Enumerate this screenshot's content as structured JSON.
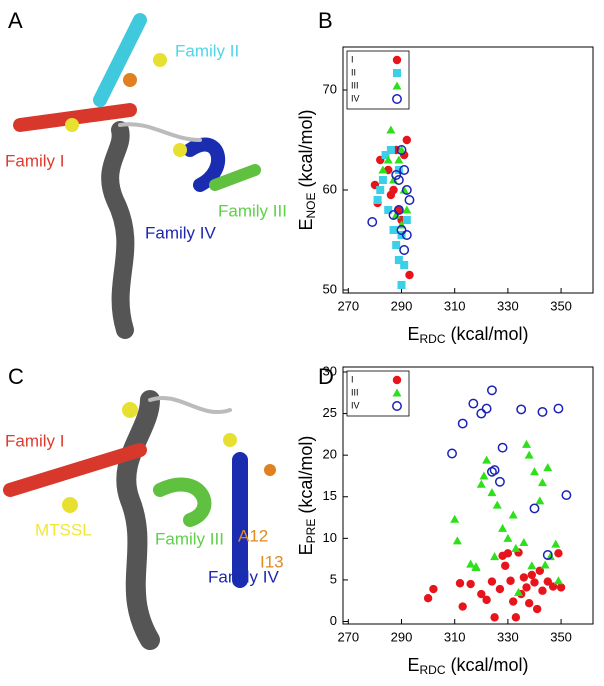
{
  "panel_labels": [
    "A",
    "B",
    "C",
    "D"
  ],
  "annotations": [
    {
      "text": "Family II",
      "color": "#4fd6e8"
    },
    {
      "text": "Family I",
      "color": "#e03a2e"
    },
    {
      "text": "Family III",
      "color": "#5fd048"
    },
    {
      "text": "Family IV",
      "color": "#1c28b0"
    },
    {
      "text": "Family I",
      "color": "#e03a2e"
    },
    {
      "text": "MTSSL",
      "color": "#f0e830"
    },
    {
      "text": "A12",
      "color": "#e08a20"
    },
    {
      "text": "I13",
      "color": "#e08a20"
    },
    {
      "text": "Family III",
      "color": "#5fd048"
    },
    {
      "text": "Family IV",
      "color": "#1c28b0"
    }
  ],
  "chart_data": [
    {
      "type": "scatter",
      "x_label": {
        "main": "E",
        "sub": "RDC",
        "unit": "(kcal/mol)"
      },
      "y_label": {
        "main": "E",
        "sub": "NOE",
        "unit": "(kcal/mol)"
      },
      "xlim": [
        268,
        362
      ],
      "xticks": [
        270,
        290,
        310,
        330,
        350
      ],
      "ylim": [
        49.7,
        74.3
      ],
      "yticks": [
        50,
        60,
        70
      ],
      "series": [
        {
          "name": "I",
          "color": "#e8141c",
          "marker": "circle",
          "x": [
            280,
            282,
            285,
            287,
            288,
            289,
            290,
            291,
            292,
            293,
            286,
            281
          ],
          "values": [
            60.5,
            63,
            62,
            60,
            64,
            58,
            57,
            63.5,
            65,
            51.5,
            59.5,
            58.7
          ]
        },
        {
          "name": "II",
          "color": "#3ad0e8",
          "marker": "square",
          "x": [
            281,
            283,
            284,
            286,
            287,
            288,
            289,
            290,
            291,
            292,
            285,
            282,
            289,
            290
          ],
          "values": [
            59,
            61,
            63.5,
            64,
            56,
            54.5,
            62,
            50.5,
            52.5,
            57,
            58,
            60,
            53,
            55.5
          ]
        },
        {
          "name": "III",
          "color": "#2ee01c",
          "marker": "triangle",
          "x": [
            283,
            286,
            287,
            288,
            289,
            290,
            291,
            292,
            285,
            290
          ],
          "values": [
            62,
            66,
            61,
            57.5,
            63,
            64,
            60,
            58,
            63,
            56.5
          ]
        },
        {
          "name": "IV",
          "color": "#1a22b8",
          "marker": "open-circle",
          "x": [
            279,
            287,
            288,
            289,
            290,
            291,
            292,
            293,
            290,
            291,
            292,
            289
          ],
          "values": [
            56.8,
            57.5,
            61.5,
            61,
            64,
            62,
            60,
            59,
            56,
            54,
            55.5,
            58
          ]
        }
      ]
    },
    {
      "type": "scatter",
      "x_label": {
        "main": "E",
        "sub": "RDC",
        "unit": "(kcal/mol)"
      },
      "y_label": {
        "main": "E",
        "sub": "PRE",
        "unit": "(kcal/mol)"
      },
      "xlim": [
        268,
        362
      ],
      "xticks": [
        270,
        290,
        310,
        330,
        350
      ],
      "ylim": [
        -0.3,
        30.6
      ],
      "yticks": [
        0,
        5,
        10,
        15,
        20,
        25,
        30
      ],
      "series": [
        {
          "name": "I",
          "color": "#e8141c",
          "marker": "circle",
          "x": [
            300,
            302,
            312,
            313,
            316,
            320,
            322,
            324,
            325,
            327,
            328,
            330,
            331,
            332,
            333,
            335,
            336,
            337,
            338,
            339,
            340,
            341,
            342,
            343,
            345,
            347,
            349,
            350,
            329,
            334
          ],
          "values": [
            2.8,
            3.9,
            4.6,
            1.8,
            4.5,
            3.3,
            2.6,
            4.8,
            0.5,
            3.9,
            7.9,
            8.2,
            4.9,
            2.4,
            0.5,
            3.3,
            5.3,
            4.1,
            2.2,
            5.6,
            4.7,
            1.5,
            6.1,
            3.7,
            4.8,
            4.2,
            8.2,
            4.1,
            6.7,
            8.3
          ]
        },
        {
          "name": "III",
          "color": "#2ee01c",
          "marker": "triangle",
          "x": [
            310,
            311,
            316,
            318,
            320,
            321,
            322,
            324,
            326,
            328,
            330,
            332,
            334,
            336,
            337,
            338,
            340,
            342,
            344,
            346,
            348,
            349,
            318,
            325,
            333,
            339,
            343,
            345
          ],
          "values": [
            12.3,
            9.7,
            6.9,
            6.5,
            16.5,
            17.5,
            19.4,
            15.5,
            14,
            11.2,
            10,
            12.8,
            3.5,
            9.5,
            21.3,
            20,
            18,
            14.5,
            6.8,
            7.8,
            9.3,
            4.9,
            6.6,
            7.8,
            8.8,
            6.7,
            16.7,
            18.5
          ]
        },
        {
          "name": "IV",
          "color": "#1a22b8",
          "marker": "open-circle",
          "x": [
            309,
            313,
            317,
            320,
            322,
            324,
            325,
            327,
            328,
            335,
            340,
            343,
            349,
            352,
            324,
            345
          ],
          "values": [
            20.2,
            23.8,
            26.2,
            25,
            25.6,
            27.8,
            18.2,
            16.8,
            20.9,
            25.5,
            13.6,
            25.2,
            25.6,
            15.2,
            18,
            8
          ]
        }
      ]
    }
  ]
}
